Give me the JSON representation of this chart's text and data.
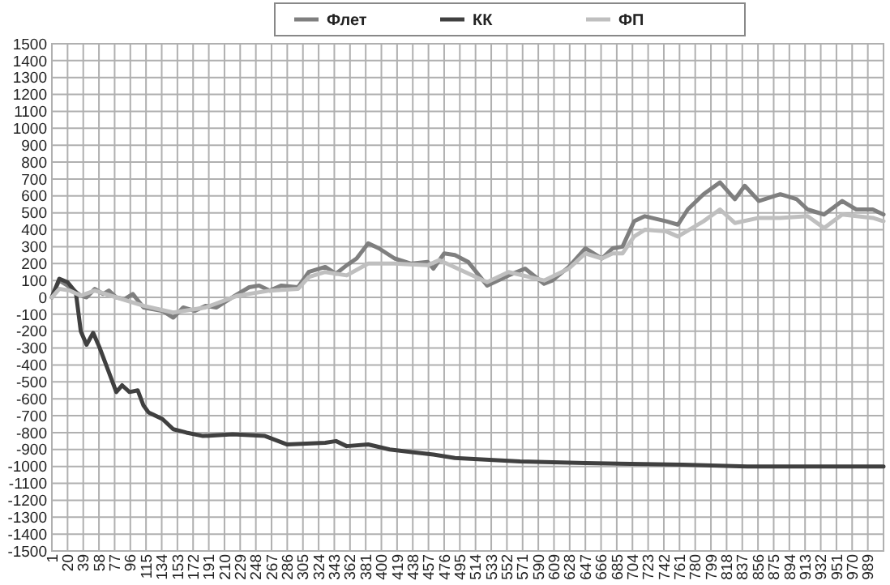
{
  "chart_data": {
    "type": "line",
    "xlim": [
      1,
      1008
    ],
    "xticks": [
      1,
      20,
      39,
      58,
      77,
      96,
      115,
      134,
      153,
      172,
      191,
      210,
      229,
      248,
      267,
      286,
      305,
      324,
      343,
      362,
      381,
      400,
      419,
      438,
      457,
      476,
      495,
      514,
      533,
      552,
      571,
      590,
      609,
      628,
      647,
      666,
      685,
      704,
      723,
      742,
      761,
      780,
      799,
      818,
      837,
      856,
      875,
      894,
      913,
      932,
      951,
      970,
      989
    ],
    "ylim": [
      -1500,
      1500
    ],
    "yticks": [
      -1500,
      -1400,
      -1300,
      -1200,
      -1100,
      -1000,
      -900,
      -800,
      -700,
      -600,
      -500,
      -400,
      -300,
      -200,
      -100,
      0,
      100,
      200,
      300,
      400,
      500,
      600,
      700,
      800,
      900,
      1000,
      1100,
      1200,
      1300,
      1400,
      1500
    ],
    "grid": true,
    "legend": "top",
    "marker": "none",
    "line_style": "solid",
    "series": [
      {
        "name": "Флет",
        "color": "#7f7f7f",
        "x": [
          1,
          3,
          10,
          23,
          36,
          43,
          53,
          63,
          70,
          79,
          89,
          99,
          112,
          135,
          148,
          160,
          174,
          187,
          200,
          213,
          226,
          240,
          252,
          265,
          279,
          299,
          312,
          332,
          345,
          358,
          370,
          384,
          397,
          416,
          436,
          456,
          463,
          476,
          489,
          505,
          528,
          554,
          574,
          597,
          607,
          627,
          647,
          667,
          680,
          692,
          706,
          719,
          745,
          759,
          771,
          790,
          810,
          828,
          840,
          857,
          883,
          903,
          916,
          936,
          958,
          975,
          995,
          1008
        ],
        "values": [
          0,
          30,
          100,
          60,
          10,
          0,
          50,
          20,
          40,
          0,
          -10,
          20,
          -60,
          -80,
          -120,
          -60,
          -80,
          -50,
          -60,
          -20,
          20,
          60,
          70,
          40,
          70,
          60,
          150,
          180,
          140,
          190,
          230,
          320,
          290,
          230,
          200,
          210,
          170,
          260,
          250,
          210,
          70,
          130,
          170,
          80,
          100,
          180,
          290,
          230,
          290,
          300,
          450,
          480,
          450,
          430,
          520,
          610,
          680,
          580,
          660,
          570,
          610,
          580,
          520,
          490,
          570,
          520,
          520,
          490
        ]
      },
      {
        "name": "КК",
        "color": "#404040",
        "x": [
          1,
          10,
          20,
          30,
          36,
          43,
          51,
          59,
          69,
          79,
          86,
          95,
          105,
          112,
          118,
          135,
          148,
          164,
          184,
          220,
          259,
          286,
          332,
          345,
          358,
          384,
          410,
          463,
          489,
          568,
          647,
          765,
          843,
          1008
        ],
        "values": [
          0,
          110,
          90,
          30,
          -200,
          -280,
          -210,
          -300,
          -430,
          -560,
          -520,
          -560,
          -550,
          -640,
          -680,
          -720,
          -780,
          -800,
          -820,
          -810,
          -820,
          -870,
          -860,
          -850,
          -880,
          -870,
          -900,
          -930,
          -950,
          -970,
          -980,
          -990,
          -1000,
          -1000
        ]
      },
      {
        "name": "ФП",
        "color": "#bfbfbf",
        "x": [
          1,
          10,
          23,
          36,
          53,
          79,
          112,
          148,
          187,
          226,
          265,
          299,
          312,
          332,
          358,
          384,
          416,
          456,
          470,
          528,
          554,
          597,
          627,
          647,
          667,
          680,
          692,
          706,
          719,
          745,
          759,
          790,
          810,
          828,
          857,
          883,
          916,
          936,
          958,
          995,
          1008
        ],
        "values": [
          0,
          50,
          40,
          10,
          40,
          0,
          -50,
          -90,
          -60,
          10,
          40,
          50,
          120,
          150,
          130,
          200,
          200,
          190,
          220,
          90,
          150,
          100,
          170,
          260,
          230,
          260,
          260,
          360,
          400,
          390,
          360,
          450,
          520,
          440,
          470,
          470,
          480,
          410,
          490,
          470,
          450
        ]
      }
    ]
  }
}
